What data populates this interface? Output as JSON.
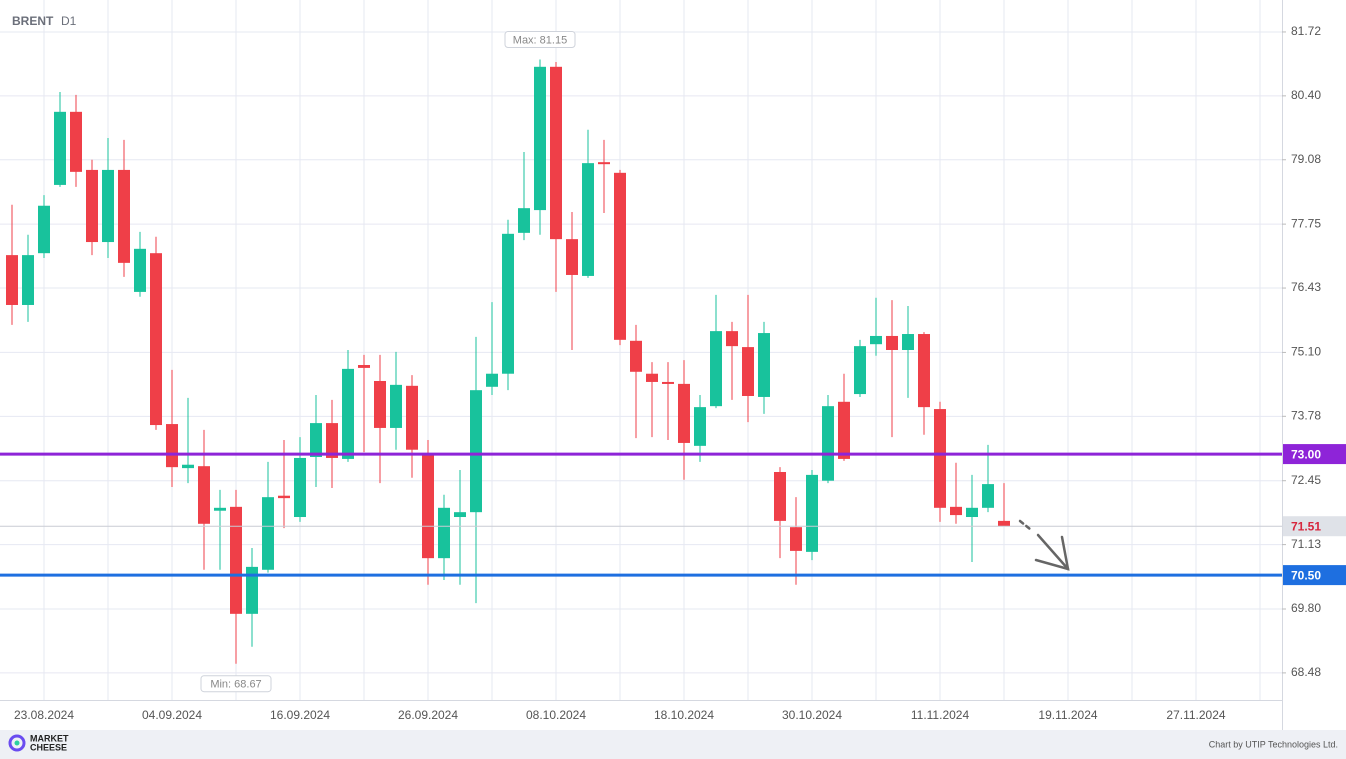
{
  "chart_data": {
    "type": "candlestick",
    "title": "BRENT",
    "subtitle": "D1",
    "categories": [
      null,
      null,
      "23.08.2024",
      null,
      null,
      null,
      null,
      null,
      null,
      null,
      "04.09.2024",
      null,
      null,
      null,
      null,
      null,
      null,
      null,
      "16.09.2024",
      null,
      null,
      null,
      null,
      null,
      null,
      null,
      "26.09.2024",
      null,
      null,
      null,
      null,
      null,
      null,
      null,
      "08.10.2024",
      null,
      null,
      null,
      null,
      null,
      null,
      null,
      "18.10.2024",
      null,
      null,
      null,
      null,
      null,
      null,
      null,
      "30.10.2024",
      null,
      null,
      null,
      null,
      null,
      null,
      null,
      "11.11.2024",
      null,
      null,
      null,
      null,
      null,
      null,
      null,
      "19.11.2024",
      null,
      null,
      null,
      null,
      null,
      null,
      null,
      "27.11.2024",
      null,
      null,
      null,
      null,
      null
    ],
    "open": [
      77.11,
      76.08,
      77.15,
      78.56,
      80.07,
      78.87,
      77.38,
      78.87,
      76.35,
      77.15,
      73.62,
      72.71,
      72.75,
      71.83,
      71.91,
      69.7,
      70.61,
      72.14,
      71.7,
      72.94,
      73.64,
      72.9,
      74.84,
      74.51,
      73.54,
      74.41,
      72.98,
      70.85,
      71.7,
      71.8,
      74.39,
      74.66,
      77.57,
      78.04,
      81.0,
      77.44,
      76.68,
      79.03,
      78.81,
      75.34,
      74.66,
      74.49,
      74.45,
      73.17,
      73.99,
      75.54,
      75.21,
      74.18,
      72.63,
      71.49,
      70.98,
      72.45,
      74.08,
      74.24,
      75.27,
      75.44,
      75.15,
      75.48,
      73.93,
      71.91,
      71.7,
      71.89,
      71.62,
      null,
      null,
      null,
      null,
      null,
      null,
      null,
      null,
      null,
      null,
      null,
      null,
      null,
      null,
      null,
      null,
      null
    ],
    "high": [
      78.15,
      77.53,
      78.35,
      80.48,
      80.42,
      79.08,
      79.53,
      79.49,
      77.59,
      77.49,
      74.74,
      74.16,
      73.5,
      72.26,
      72.26,
      71.06,
      72.84,
      73.29,
      73.35,
      74.22,
      74.12,
      75.15,
      75.05,
      75.05,
      75.11,
      74.63,
      73.29,
      72.16,
      72.67,
      75.42,
      76.14,
      77.84,
      79.24,
      81.15,
      81.1,
      78.0,
      79.7,
      79.49,
      78.87,
      75.67,
      74.9,
      74.9,
      74.94,
      74.22,
      76.29,
      75.73,
      76.29,
      75.73,
      72.73,
      72.11,
      72.67,
      74.22,
      74.66,
      75.36,
      76.23,
      76.18,
      76.06,
      75.52,
      74.08,
      72.82,
      72.57,
      73.19,
      72.4,
      null,
      null,
      null,
      null,
      null,
      null,
      null,
      null,
      null,
      null,
      null,
      null,
      null,
      null,
      null,
      null,
      null
    ],
    "low": [
      75.67,
      75.73,
      77.05,
      78.52,
      78.52,
      77.11,
      77.05,
      76.66,
      76.25,
      73.5,
      72.32,
      72.4,
      70.61,
      70.61,
      68.67,
      69.02,
      70.55,
      71.47,
      71.6,
      72.32,
      72.3,
      72.84,
      73.04,
      72.4,
      73.09,
      72.51,
      70.3,
      70.4,
      70.3,
      69.92,
      74.22,
      74.32,
      77.42,
      77.53,
      76.35,
      75.15,
      76.64,
      77.98,
      75.25,
      73.33,
      73.35,
      73.29,
      72.47,
      72.84,
      73.95,
      74.12,
      73.66,
      73.83,
      70.85,
      70.3,
      70.81,
      72.4,
      72.86,
      74.18,
      75.03,
      73.35,
      74.16,
      73.4,
      71.6,
      71.56,
      70.77,
      71.8,
      71.51,
      null,
      null,
      null,
      null,
      null,
      null,
      null,
      null,
      null,
      null,
      null,
      null,
      null,
      null,
      null,
      null,
      null
    ],
    "close": [
      76.08,
      77.11,
      78.13,
      80.07,
      78.83,
      77.38,
      78.87,
      76.95,
      77.24,
      73.6,
      72.73,
      72.78,
      71.56,
      71.89,
      69.7,
      70.67,
      72.11,
      72.09,
      72.92,
      73.64,
      72.92,
      74.76,
      74.78,
      73.54,
      74.43,
      73.09,
      70.85,
      71.89,
      71.8,
      74.32,
      74.66,
      77.55,
      78.08,
      81.0,
      77.44,
      76.7,
      79.01,
      78.99,
      75.36,
      74.7,
      74.49,
      74.45,
      73.23,
      73.97,
      75.54,
      75.23,
      74.2,
      75.5,
      71.62,
      71.0,
      72.57,
      73.99,
      72.9,
      75.23,
      75.44,
      75.15,
      75.48,
      73.97,
      71.89,
      71.74,
      71.89,
      72.38,
      71.51,
      null,
      null,
      null,
      null,
      null,
      null,
      null,
      null,
      null,
      null,
      null,
      null,
      null,
      null,
      null,
      null,
      null
    ],
    "up_color": "#18c29c",
    "down_color": "#ef3f48",
    "ylim": [
      67.92,
      82.38
    ],
    "yticks": [
      81.72,
      {
        "value": 80.4,
        "label": "80.40"
      },
      79.08,
      77.75,
      76.43,
      {
        "value": 75.1,
        "label": "75.10"
      },
      73.78,
      72.45,
      71.13,
      {
        "value": 69.8,
        "label": "69.80"
      },
      68.48
    ],
    "grid": true,
    "levels": [
      {
        "value": 73,
        "label": "73.00",
        "color": "#8e24d8"
      },
      {
        "value": 70.5,
        "label": "70.50",
        "color": "#1e6fe0"
      }
    ],
    "last_price": {
      "value": 71.51,
      "label": "71.51"
    },
    "annotations": [
      {
        "text": "Max: 81.15",
        "value": 81.15,
        "kind": "high"
      },
      {
        "text": "Min: 68.67",
        "value": 68.67,
        "kind": "low"
      }
    ]
  },
  "footer": {
    "brand": [
      "MARKET",
      "CHEESE"
    ],
    "credit": "Chart by UTIP Technologies Ltd."
  }
}
